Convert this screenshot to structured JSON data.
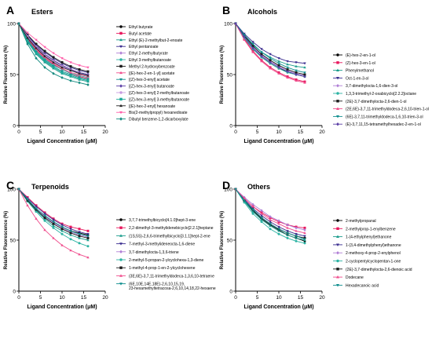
{
  "panels": [
    {
      "letter": "A",
      "title": "Esters",
      "xlabel": "Ligand Concentration (μM)",
      "ylabel": "Relative Fluorescence (%)"
    },
    {
      "letter": "B",
      "title": "Alcohols",
      "xlabel": "Ligand Concentration (μM)",
      "ylabel": "Relative Fluorescence (%)"
    },
    {
      "letter": "C",
      "title": "Terpenoids",
      "xlabel": "Ligand Concentration (μM)",
      "ylabel": "Relative Fluorescence (%)"
    },
    {
      "letter": "D",
      "title": "Others",
      "xlabel": "Ligand Concentration (μM)",
      "ylabel": "Relative Fluorescence (%)"
    }
  ],
  "chart_data": [
    {
      "type": "line",
      "x": [
        0,
        2,
        4,
        6,
        8,
        10,
        12,
        14,
        16
      ],
      "xlim": [
        0,
        20
      ],
      "ylim": [
        0,
        100
      ],
      "xticks": [
        0,
        5,
        10,
        15,
        20
      ],
      "yticks": [
        0,
        50,
        100
      ],
      "legend_position": "right",
      "series": [
        {
          "name": "Ethyl butyrate",
          "color": "#000000",
          "marker": "circle",
          "values": [
            100,
            87,
            77,
            70,
            64,
            59,
            55,
            52,
            50
          ]
        },
        {
          "name": "Butyl acetate",
          "color": "#e8175d",
          "marker": "square",
          "values": [
            100,
            85,
            74,
            66,
            60,
            55,
            51,
            48,
            46
          ]
        },
        {
          "name": "Ethyl (E)-2-methylbut-2-enoate",
          "color": "#1a9c8c",
          "marker": "triangle",
          "values": [
            100,
            82,
            70,
            62,
            56,
            51,
            48,
            45,
            43
          ]
        },
        {
          "name": "Ethyl pentanoate",
          "color": "#3a2d8f",
          "marker": "triangle-down",
          "values": [
            100,
            88,
            79,
            72,
            66,
            61,
            57,
            54,
            52
          ]
        },
        {
          "name": "Ethyl 2-methylbutyrate",
          "color": "#b07fd6",
          "marker": "diamond",
          "values": [
            100,
            86,
            76,
            69,
            63,
            58,
            55,
            52,
            50
          ]
        },
        {
          "name": "Ethyl 3-methylbutanoate",
          "color": "#2bb3a3",
          "marker": "circle",
          "values": [
            100,
            84,
            73,
            65,
            59,
            55,
            51,
            49,
            47
          ]
        },
        {
          "name": "Methyl 2-hydroxybenzoate",
          "color": "#1a1a1a",
          "marker": "square",
          "values": [
            100,
            89,
            80,
            73,
            67,
            62,
            58,
            55,
            53
          ]
        },
        {
          "name": "[(E)-hex-2-en-1-yl] acetate",
          "color": "#f04c8c",
          "marker": "triangle",
          "values": [
            100,
            86,
            75,
            67,
            61,
            56,
            52,
            50,
            48
          ]
        },
        {
          "name": "[(Z)-hex-3-enyl] acetate",
          "color": "#0f8e8e",
          "marker": "triangle-down",
          "values": [
            100,
            84,
            72,
            64,
            58,
            53,
            50,
            47,
            45
          ]
        },
        {
          "name": "[(Z)-hex-3-enyl] butanoate",
          "color": "#5b3fa6",
          "marker": "diamond",
          "values": [
            100,
            88,
            78,
            70,
            64,
            59,
            55,
            52,
            50
          ]
        },
        {
          "name": "[(Z)-hex-3-enyl] 2-methylbutanoate",
          "color": "#c89ae0",
          "marker": "circle",
          "values": [
            100,
            87,
            77,
            69,
            63,
            58,
            54,
            51,
            49
          ]
        },
        {
          "name": "[(Z)-hex-3-enyl] 3-methylbutanoate",
          "color": "#1ca89a",
          "marker": "square",
          "values": [
            100,
            83,
            71,
            63,
            57,
            52,
            49,
            46,
            44
          ]
        },
        {
          "name": "[(E)-hex-2-enyl] hexanoate",
          "color": "#222222",
          "marker": "triangle",
          "values": [
            100,
            86,
            76,
            68,
            62,
            57,
            54,
            51,
            49
          ]
        },
        {
          "name": "Bis(2-methylpropyl) hexanedioate",
          "color": "#ff5ca8",
          "marker": "triangle-down",
          "values": [
            100,
            91,
            84,
            77,
            71,
            66,
            62,
            59,
            57
          ]
        },
        {
          "name": "Dibutyl benzene-1,2-dicarboxylate",
          "color": "#138a7f",
          "marker": "diamond",
          "values": [
            100,
            80,
            66,
            57,
            51,
            47,
            44,
            42,
            40
          ]
        }
      ]
    },
    {
      "type": "line",
      "x": [
        0,
        2,
        4,
        6,
        8,
        10,
        12,
        14,
        16
      ],
      "xlim": [
        0,
        20
      ],
      "ylim": [
        0,
        100
      ],
      "xticks": [
        0,
        5,
        10,
        15,
        20
      ],
      "yticks": [
        0,
        50,
        100
      ],
      "legend_position": "right",
      "series": [
        {
          "name": "(E)-hex-2-en-1-ol",
          "color": "#000000",
          "marker": "circle",
          "values": [
            100,
            86,
            75,
            67,
            61,
            56,
            53,
            50,
            48
          ]
        },
        {
          "name": "(Z)-hex-3-en-1-ol",
          "color": "#e8175d",
          "marker": "square",
          "values": [
            100,
            85,
            73,
            64,
            57,
            52,
            48,
            45,
            43
          ]
        },
        {
          "name": "Phenylmethanol",
          "color": "#1a9c8c",
          "marker": "triangle",
          "values": [
            100,
            88,
            79,
            72,
            67,
            63,
            60,
            58,
            57
          ]
        },
        {
          "name": "Oct-1-en-3-ol",
          "color": "#3a2d8f",
          "marker": "triangle-down",
          "values": [
            100,
            90,
            82,
            75,
            70,
            66,
            63,
            62,
            61
          ]
        },
        {
          "name": "3,7-dimethylocta-1,6-dien-3-ol",
          "color": "#b07fd6",
          "marker": "diamond",
          "values": [
            100,
            87,
            77,
            69,
            63,
            58,
            54,
            51,
            49
          ]
        },
        {
          "name": "1,3,3-trimethyl-2-oxabicyclo[2.2.2]octane",
          "color": "#2bb3a3",
          "marker": "circle",
          "values": [
            100,
            86,
            75,
            67,
            61,
            56,
            52,
            50,
            48
          ]
        },
        {
          "name": "(2E)-3,7-dimethylocta-2,6-dien-1-ol",
          "color": "#1a1a1a",
          "marker": "square",
          "values": [
            100,
            88,
            78,
            70,
            64,
            59,
            55,
            52,
            50
          ]
        },
        {
          "name": "(2E,6E)-3,7,11-trimethyldodeca-2,6,10-trien-1-ol",
          "color": "#f04c8c",
          "marker": "triangle",
          "values": [
            100,
            84,
            72,
            63,
            56,
            51,
            47,
            44,
            42
          ]
        },
        {
          "name": "(6E)-3,7,11-trimethyldodeca-1,6,10-trien-3-ol",
          "color": "#0f8e8e",
          "marker": "triangle-down",
          "values": [
            100,
            89,
            80,
            72,
            66,
            61,
            57,
            54,
            52
          ]
        },
        {
          "name": "(E)-3,7,11,15-tetramethylhexadec-2-en-1-ol",
          "color": "#5b3fa6",
          "marker": "diamond",
          "values": [
            100,
            87,
            76,
            68,
            62,
            57,
            53,
            50,
            48
          ]
        }
      ]
    },
    {
      "type": "line",
      "x": [
        0,
        2,
        4,
        6,
        8,
        10,
        12,
        14,
        16
      ],
      "xlim": [
        0,
        20
      ],
      "ylim": [
        0,
        100
      ],
      "xticks": [
        0,
        5,
        10,
        15,
        20
      ],
      "yticks": [
        0,
        50,
        100
      ],
      "legend_position": "right",
      "series": [
        {
          "name": "3,7,7-trimethylbicyclo[4.1.0]hept-3-ene",
          "color": "#000000",
          "marker": "circle",
          "values": [
            100,
            90,
            81,
            74,
            68,
            63,
            59,
            57,
            55
          ]
        },
        {
          "name": "2,2-dimethyl-3-methylidenebicyclo[2.2.1]heptane",
          "color": "#e8175d",
          "marker": "square",
          "values": [
            100,
            92,
            84,
            77,
            71,
            66,
            63,
            61,
            59
          ]
        },
        {
          "name": "(1S,5S)-2,6,6-trimethylbicyclo[3.1.1]hept-2-ene",
          "color": "#1a9c8c",
          "marker": "triangle",
          "values": [
            100,
            89,
            79,
            71,
            64,
            59,
            55,
            52,
            50
          ]
        },
        {
          "name": "7-methyl-3-methylideneocta-1,6-diene",
          "color": "#3a2d8f",
          "marker": "triangle-down",
          "values": [
            100,
            91,
            83,
            76,
            70,
            65,
            61,
            58,
            56
          ]
        },
        {
          "name": "3,7-dimethylocta-1,3,6-triene",
          "color": "#b07fd6",
          "marker": "diamond",
          "values": [
            100,
            90,
            81,
            73,
            67,
            62,
            58,
            55,
            53
          ]
        },
        {
          "name": "2-methyl-5-propan-2-ylcyclohexa-1,3-diene",
          "color": "#2bb3a3",
          "marker": "circle",
          "values": [
            100,
            88,
            78,
            69,
            62,
            56,
            51,
            47,
            44
          ]
        },
        {
          "name": "1-methyl-4-prop-1-en-2-ylcyclohexene",
          "color": "#1a1a1a",
          "marker": "square",
          "values": [
            100,
            89,
            80,
            72,
            66,
            61,
            57,
            54,
            52
          ]
        },
        {
          "name": "(3E,6E)-3,7,11-trimethyldodeca-1,3,6,10-tetraene",
          "color": "#f04c8c",
          "marker": "triangle",
          "values": [
            100,
            84,
            71,
            60,
            52,
            45,
            40,
            36,
            33
          ]
        },
        {
          "name": "(6E,10E,14E,18E)-2,6,10,15,19,23-hexamethyltetracosa-2,6,10,14,18,22-hexaene",
          "color": "#0f8e8e",
          "marker": "triangle-down",
          "values": [
            100,
            90,
            81,
            74,
            68,
            63,
            59,
            56,
            54
          ]
        }
      ]
    },
    {
      "type": "line",
      "x": [
        0,
        2,
        4,
        6,
        8,
        10,
        12,
        14,
        16
      ],
      "xlim": [
        0,
        20
      ],
      "ylim": [
        0,
        100
      ],
      "xticks": [
        0,
        5,
        10,
        15,
        20
      ],
      "yticks": [
        0,
        50,
        100
      ],
      "legend_position": "right",
      "series": [
        {
          "name": "2-methylpropanal",
          "color": "#000000",
          "marker": "circle",
          "values": [
            100,
            89,
            79,
            71,
            65,
            60,
            55,
            52,
            49
          ]
        },
        {
          "name": "2-methylprop-1-enylbenzene",
          "color": "#e8175d",
          "marker": "square",
          "values": [
            100,
            91,
            83,
            77,
            72,
            68,
            65,
            63,
            62
          ]
        },
        {
          "name": "1-(4-ethylphenyl)ethanone",
          "color": "#1a9c8c",
          "marker": "triangle",
          "values": [
            100,
            88,
            78,
            70,
            64,
            59,
            55,
            52,
            50
          ]
        },
        {
          "name": "1-(3,4-dimethylphenyl)ethanone",
          "color": "#3a2d8f",
          "marker": "triangle-down",
          "values": [
            100,
            90,
            81,
            74,
            68,
            63,
            59,
            56,
            54
          ]
        },
        {
          "name": "2-methoxy-4-prop-2-enylphenol",
          "color": "#b07fd6",
          "marker": "diamond",
          "values": [
            100,
            92,
            85,
            79,
            73,
            69,
            65,
            62,
            60
          ]
        },
        {
          "name": "2-cyclopentylcyclopentan-1-one",
          "color": "#2bb3a3",
          "marker": "circle",
          "values": [
            100,
            87,
            76,
            68,
            61,
            56,
            52,
            49,
            47
          ]
        },
        {
          "name": "(2E)-3,7-dimethylocta-2,6-dienoic acid",
          "color": "#1a1a1a",
          "marker": "square",
          "values": [
            100,
            89,
            80,
            72,
            66,
            61,
            57,
            54,
            52
          ]
        },
        {
          "name": "Dodecane",
          "color": "#f04c8c",
          "marker": "triangle",
          "values": [
            100,
            91,
            83,
            76,
            70,
            66,
            62,
            59,
            57
          ]
        },
        {
          "name": "Hexadecanoic acid",
          "color": "#0f8e8e",
          "marker": "triangle-down",
          "values": [
            100,
            89,
            80,
            72,
            66,
            61,
            57,
            54,
            51
          ]
        }
      ]
    }
  ]
}
